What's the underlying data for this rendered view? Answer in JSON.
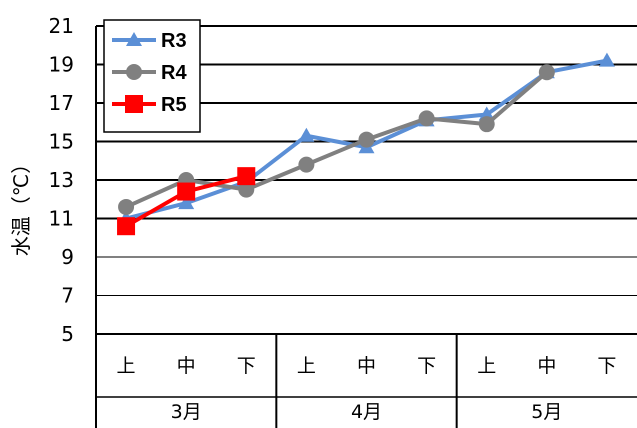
{
  "chart_data": {
    "type": "line",
    "ylabel": "水温（℃）",
    "ylim": [
      5,
      21
    ],
    "yticks": [
      "5",
      "7",
      "9",
      "11",
      "13",
      "15",
      "17",
      "19",
      "21"
    ],
    "categories": [
      "上",
      "中",
      "下",
      "上",
      "中",
      "下",
      "上",
      "中",
      "下"
    ],
    "groups": [
      "3月",
      "4月",
      "5月"
    ],
    "grid": true,
    "legend_position": "top-left",
    "series": [
      {
        "name": "R3",
        "color": "#5B8FD6",
        "marker": "triangle",
        "values": [
          11.0,
          11.8,
          12.9,
          15.3,
          14.7,
          16.1,
          16.4,
          18.6,
          19.2
        ]
      },
      {
        "name": "R4",
        "color": "#808080",
        "marker": "circle",
        "values": [
          11.6,
          13.0,
          12.5,
          13.8,
          15.1,
          16.2,
          15.9,
          18.6,
          null
        ]
      },
      {
        "name": "R5",
        "color": "#FF0000",
        "marker": "square",
        "values": [
          10.6,
          12.4,
          13.2,
          null,
          null,
          null,
          null,
          null,
          null
        ]
      }
    ]
  }
}
